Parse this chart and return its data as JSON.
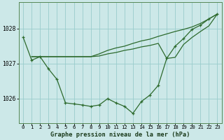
{
  "title": "Graphe pression niveau de la mer (hPa)",
  "background_color": "#cce8e8",
  "grid_color": "#99cccc",
  "line_color": "#2d6a2d",
  "xlim": [
    -0.5,
    23.5
  ],
  "ylim": [
    1025.3,
    1028.75
  ],
  "yticks": [
    1026,
    1027,
    1028
  ],
  "xticks": [
    0,
    1,
    2,
    3,
    4,
    5,
    6,
    7,
    8,
    9,
    10,
    11,
    12,
    13,
    14,
    15,
    16,
    17,
    18,
    19,
    20,
    21,
    22,
    23
  ],
  "series1_x": [
    0,
    1,
    2,
    3,
    4,
    5,
    6,
    7,
    8,
    9,
    10,
    11,
    12,
    13,
    14,
    15,
    16,
    17,
    18,
    19,
    20,
    21,
    22,
    23
  ],
  "series1": [
    1027.75,
    1027.1,
    1027.2,
    1026.85,
    1026.55,
    1025.88,
    1025.85,
    1025.82,
    1025.78,
    1025.82,
    1026.0,
    1025.88,
    1025.78,
    1025.58,
    1025.92,
    1026.1,
    1026.38,
    1027.15,
    1027.5,
    1027.72,
    1027.98,
    1028.1,
    1028.28,
    1028.42
  ],
  "series2_x": [
    1,
    2,
    3,
    4,
    5,
    6,
    7,
    8,
    9,
    10,
    11,
    12,
    13,
    14,
    15,
    16,
    17,
    18,
    19,
    20,
    21,
    22,
    23
  ],
  "series2": [
    1027.2,
    1027.2,
    1027.2,
    1027.2,
    1027.2,
    1027.2,
    1027.2,
    1027.2,
    1027.28,
    1027.38,
    1027.45,
    1027.5,
    1027.58,
    1027.65,
    1027.7,
    1027.78,
    1027.85,
    1027.92,
    1027.98,
    1028.05,
    1028.15,
    1028.28,
    1028.42
  ],
  "series3_x": [
    1,
    2,
    3,
    4,
    5,
    6,
    7,
    8,
    9,
    10,
    11,
    12,
    13,
    14,
    15,
    16,
    17,
    18,
    19,
    20,
    21,
    22,
    23
  ],
  "series3": [
    1027.2,
    1027.2,
    1027.2,
    1027.2,
    1027.2,
    1027.2,
    1027.2,
    1027.2,
    1027.22,
    1027.28,
    1027.32,
    1027.38,
    1027.42,
    1027.48,
    1027.52,
    1027.58,
    1027.15,
    1027.18,
    1027.55,
    1027.75,
    1027.92,
    1028.08,
    1028.42
  ]
}
